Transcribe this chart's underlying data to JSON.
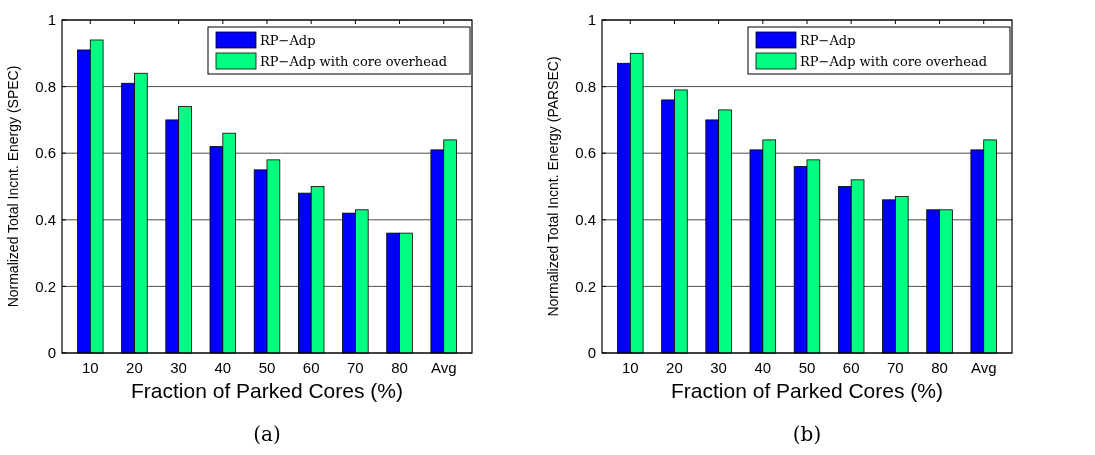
{
  "chart_data": [
    {
      "type": "bar",
      "xlabel": "Fraction of Parked Cores (%)",
      "ylabel": "Normalized Total Incnt. Energy (SPEC)",
      "categories": [
        "10",
        "20",
        "30",
        "40",
        "50",
        "60",
        "70",
        "80",
        "Avg"
      ],
      "series": [
        {
          "name": "RP−Adp",
          "color": "#0000ff",
          "values": [
            0.91,
            0.81,
            0.7,
            0.62,
            0.55,
            0.48,
            0.42,
            0.36,
            0.61
          ]
        },
        {
          "name": "RP−Adp with core overhead",
          "color": "#00ff80",
          "values": [
            0.94,
            0.84,
            0.74,
            0.66,
            0.58,
            0.5,
            0.43,
            0.36,
            0.64
          ]
        }
      ],
      "ylim": [
        0,
        1
      ],
      "yticks": [
        0,
        0.2,
        0.4,
        0.6,
        0.8,
        1
      ],
      "grid": "y",
      "legend": "top right",
      "annotations": [
        "(a)"
      ]
    },
    {
      "type": "bar",
      "xlabel": "Fraction of Parked Cores (%)",
      "ylabel": "Normalized Total Incnt. Energy (PARSEC)",
      "categories": [
        "10",
        "20",
        "30",
        "40",
        "50",
        "60",
        "70",
        "80",
        "Avg"
      ],
      "series": [
        {
          "name": "RP−Adp",
          "color": "#0000ff",
          "values": [
            0.87,
            0.76,
            0.7,
            0.61,
            0.56,
            0.5,
            0.46,
            0.43,
            0.61
          ]
        },
        {
          "name": "RP−Adp with core overhead",
          "color": "#00ff80",
          "values": [
            0.9,
            0.79,
            0.73,
            0.64,
            0.58,
            0.52,
            0.47,
            0.43,
            0.64
          ]
        }
      ],
      "ylim": [
        0,
        1
      ],
      "yticks": [
        0,
        0.2,
        0.4,
        0.6,
        0.8,
        1
      ],
      "grid": "y",
      "legend": "top right",
      "annotations": [
        "(b)"
      ]
    }
  ]
}
